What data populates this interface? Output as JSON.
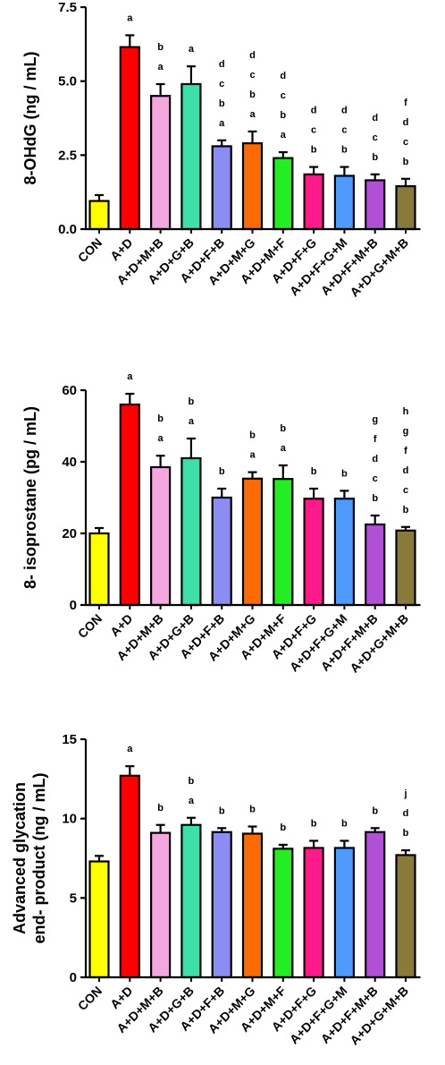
{
  "chart_data": [
    {
      "type": "bar",
      "ylabel": "8-OHdG (ng / mL)",
      "ylim": [
        0,
        7.5
      ],
      "yticks": [
        "0.0",
        "2.5",
        "5.0",
        "7.5"
      ],
      "categories": [
        "CON",
        "A+D",
        "A+D+M+B",
        "A+D+G+B",
        "A+D+F+B",
        "A+D+M+G",
        "A+D+M+F",
        "A+D+F+G",
        "A+D+F+G+M",
        "A+D+F+M+B",
        "A+D+G+M+B"
      ],
      "values": [
        0.95,
        6.15,
        4.5,
        4.9,
        2.8,
        2.9,
        2.4,
        1.85,
        1.8,
        1.65,
        1.45
      ],
      "errors": [
        0.2,
        0.4,
        0.4,
        0.6,
        0.2,
        0.4,
        0.2,
        0.25,
        0.3,
        0.2,
        0.25
      ],
      "colors": [
        "#ffff00",
        "#ff0000",
        "#f4a6de",
        "#3de0a8",
        "#8c8cf5",
        "#ff6a00",
        "#22ee22",
        "#ff1a8c",
        "#4d9bff",
        "#b14fd6",
        "#8a7a3a"
      ],
      "significance": [
        [],
        [
          "a"
        ],
        [
          "a",
          "b"
        ],
        [
          "a"
        ],
        [
          "a",
          "b",
          "c",
          "d"
        ],
        [
          "a",
          "b",
          "c",
          "d"
        ],
        [
          "a",
          "b",
          "c",
          "d"
        ],
        [
          "b",
          "c",
          "d"
        ],
        [
          "b",
          "c",
          "d"
        ],
        [
          "b",
          "c",
          "d"
        ],
        [
          "b",
          "c",
          "d",
          "f"
        ]
      ],
      "grid": false
    },
    {
      "type": "bar",
      "ylabel": "8- isoprostane (pg / mL)",
      "ylim": [
        0,
        60
      ],
      "yticks": [
        "0",
        "20",
        "40",
        "60"
      ],
      "categories": [
        "CON",
        "A+D",
        "A+D+M+B",
        "A+D+G+B",
        "A+D+F+B",
        "A+D+M+G",
        "A+D+M+F",
        "A+D+F+G",
        "A+D+F+G+M",
        "A+D+F+M+B",
        "A+D+G+M+B"
      ],
      "values": [
        20,
        56,
        38.5,
        41,
        30,
        35.3,
        35.2,
        29.7,
        29.7,
        22.5,
        20.8
      ],
      "errors": [
        1.5,
        3,
        3.2,
        5.5,
        2.5,
        1.8,
        3.8,
        2.8,
        2.2,
        2.5,
        1.0
      ],
      "colors": [
        "#ffff00",
        "#ff0000",
        "#f4a6de",
        "#3de0a8",
        "#8c8cf5",
        "#ff6a00",
        "#22ee22",
        "#ff1a8c",
        "#4d9bff",
        "#b14fd6",
        "#8a7a3a"
      ],
      "significance": [
        [],
        [
          "a"
        ],
        [
          "a",
          "b"
        ],
        [
          "a",
          "b"
        ],
        [
          "b"
        ],
        [
          "a",
          "b"
        ],
        [
          "a",
          "b"
        ],
        [
          "b"
        ],
        [
          "b"
        ],
        [
          "b",
          "c",
          "d",
          "f",
          "g"
        ],
        [
          "b",
          "c",
          "d",
          "f",
          "g",
          "h"
        ]
      ],
      "grid": false
    },
    {
      "type": "bar",
      "ylabel": "Advanced glycation end- product (ng / mL)",
      "ylabel_lines": [
        "Advanced glycation",
        "end- product (ng / mL)"
      ],
      "ylim": [
        0,
        15
      ],
      "yticks": [
        "0",
        "5",
        "10",
        "15"
      ],
      "categories": [
        "CON",
        "A+D",
        "A+D+M+B",
        "A+D+G+B",
        "A+D+F+B",
        "A+D+M+G",
        "A+D+M+F",
        "A+D+F+G",
        "A+D+F+G+M",
        "A+D+F+M+B",
        "A+D+G+M+B"
      ],
      "values": [
        7.3,
        12.7,
        9.1,
        9.6,
        9.15,
        9.05,
        8.1,
        8.15,
        8.15,
        9.15,
        7.7
      ],
      "errors": [
        0.35,
        0.6,
        0.5,
        0.45,
        0.25,
        0.45,
        0.25,
        0.45,
        0.45,
        0.25,
        0.3
      ],
      "colors": [
        "#ffff00",
        "#ff0000",
        "#f4a6de",
        "#3de0a8",
        "#8c8cf5",
        "#ff6a00",
        "#22ee22",
        "#ff1a8c",
        "#4d9bff",
        "#b14fd6",
        "#8a7a3a"
      ],
      "significance": [
        [],
        [
          "a"
        ],
        [
          "b"
        ],
        [
          "a",
          "b"
        ],
        [
          "b"
        ],
        [
          "b"
        ],
        [
          "b"
        ],
        [
          "b"
        ],
        [
          "b"
        ],
        [
          "b"
        ],
        [
          "b",
          "d",
          "j"
        ]
      ],
      "grid": false
    }
  ]
}
